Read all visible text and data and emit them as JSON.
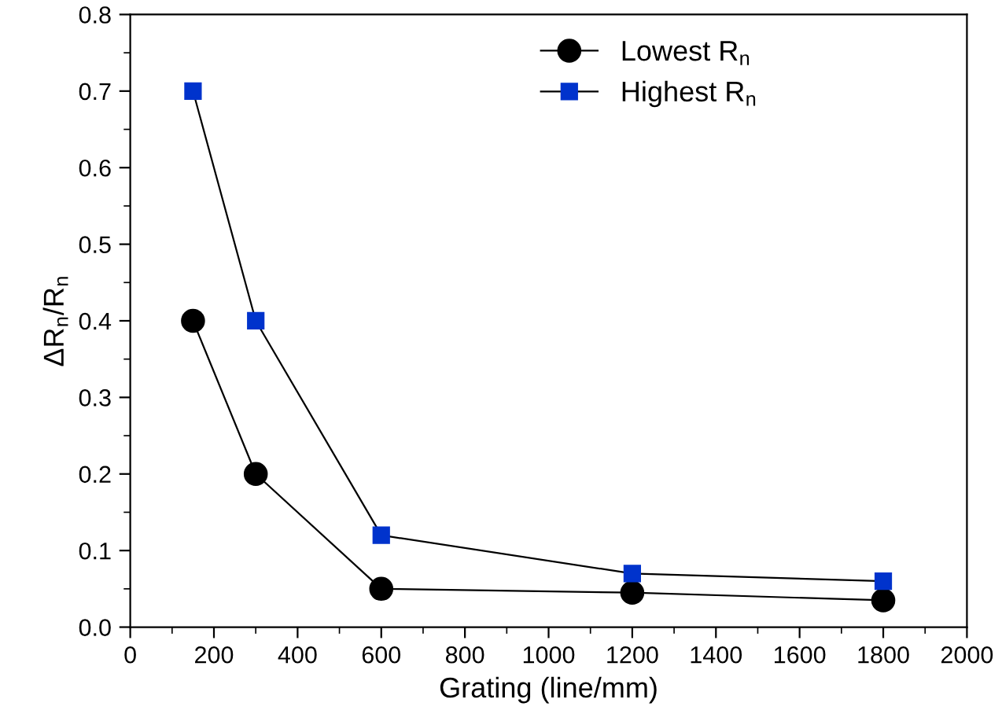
{
  "chart_data": {
    "type": "line",
    "xlabel": "Grating (line/mm)",
    "ylabel": "ΔR$_{n}$/R$_{n}$",
    "x": [
      150,
      300,
      600,
      1200,
      1800
    ],
    "series": [
      {
        "name": "Lowest R$_{n}$",
        "color": "#000000",
        "marker": "circle",
        "values": [
          0.4,
          0.2,
          0.05,
          0.045,
          0.035
        ]
      },
      {
        "name": "Highest R$_{n}$",
        "color": "#0033cc",
        "marker": "square",
        "values": [
          0.7,
          0.4,
          0.12,
          0.07,
          0.06
        ]
      }
    ],
    "xlim": [
      0,
      2000
    ],
    "xticks": [
      0,
      200,
      400,
      600,
      800,
      1000,
      1200,
      1400,
      1600,
      1800,
      2000
    ],
    "ylim": [
      0,
      0.8
    ],
    "yticks": [
      {
        "value": 0,
        "label": "0.0"
      },
      0.1,
      0.2,
      0.3,
      0.4,
      0.5,
      0.6,
      0.7,
      0.8
    ],
    "grid": false,
    "legend": "top right",
    "line_style": "solid"
  }
}
